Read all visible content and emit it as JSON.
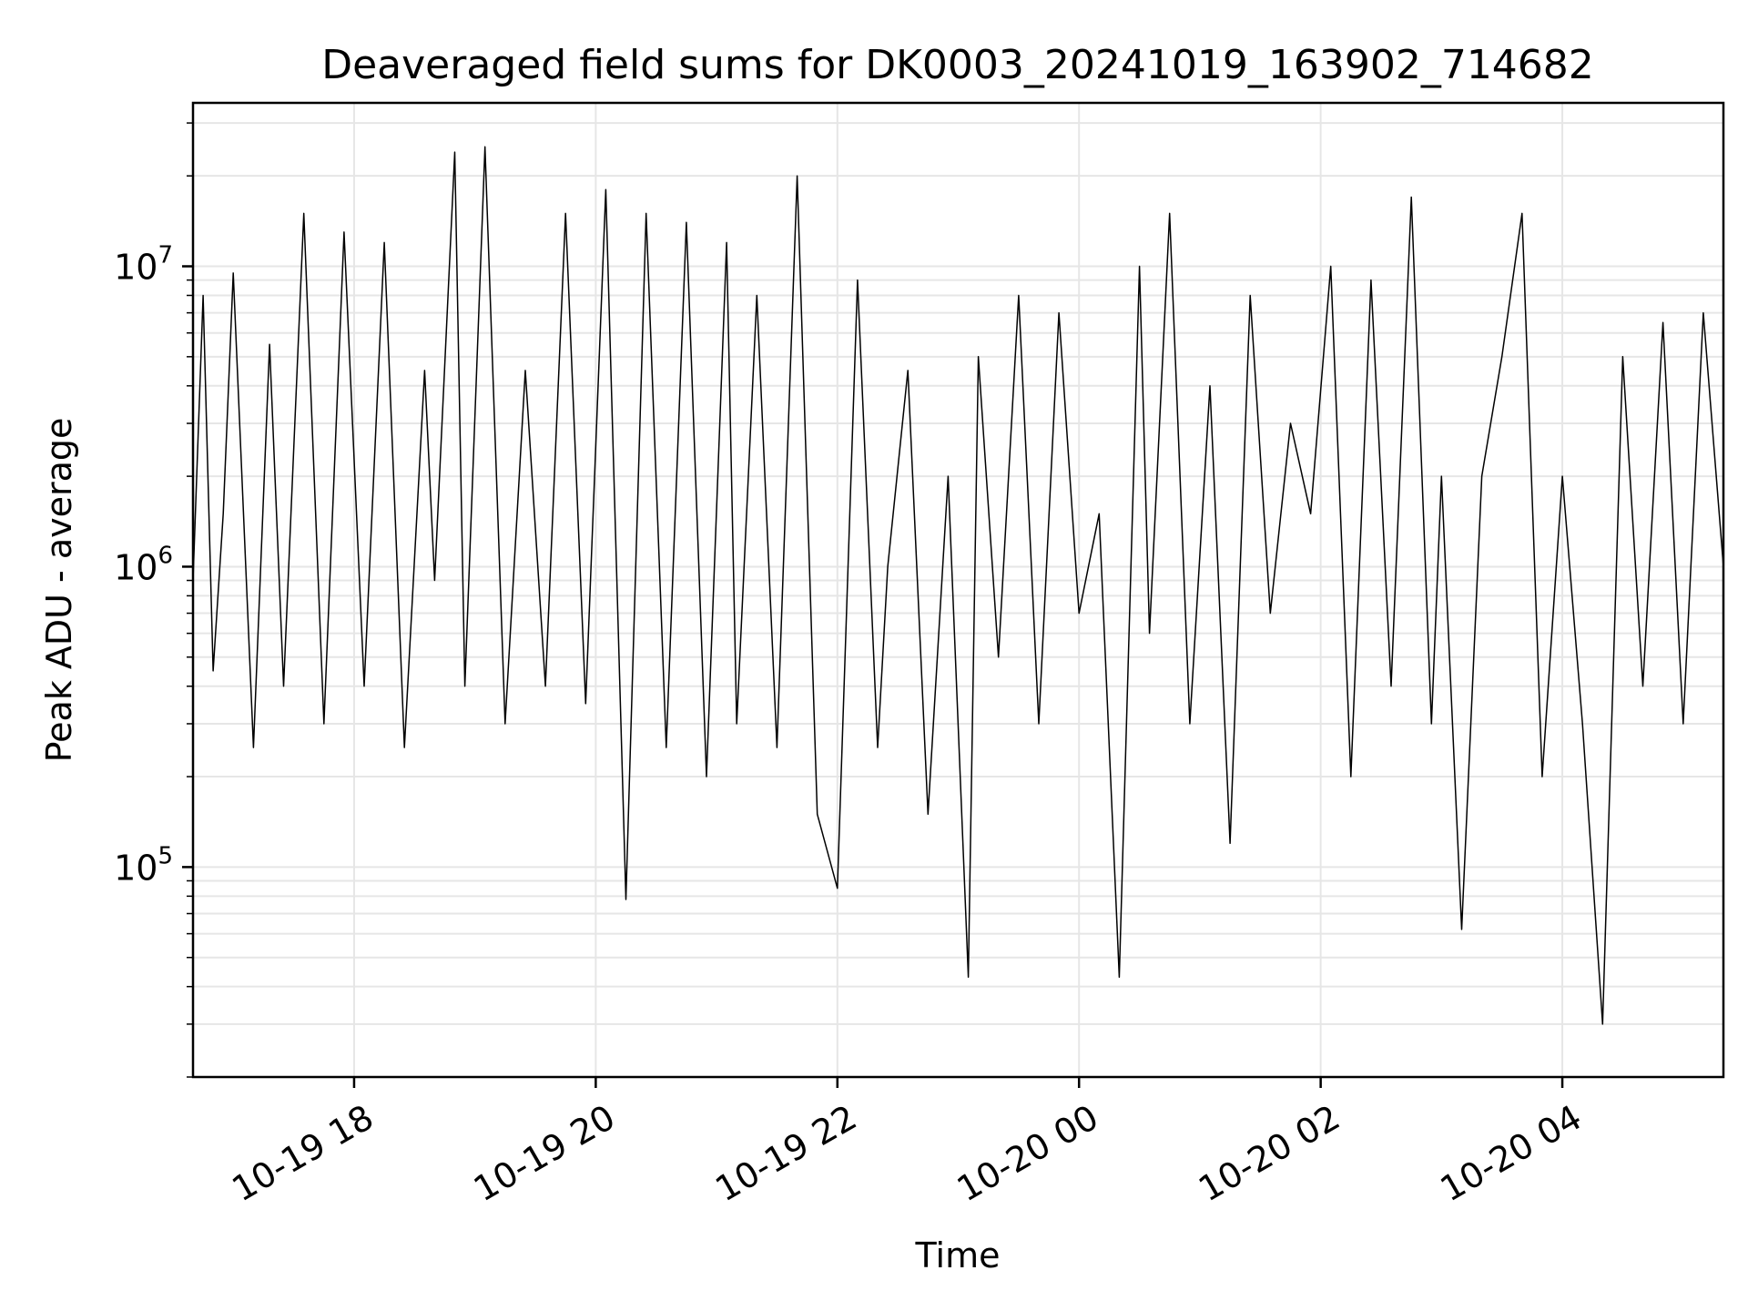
{
  "chart_data": {
    "type": "line",
    "title": "Deaveraged field sums for DK0003_20241019_163902_714682",
    "xlabel": "Time",
    "ylabel": "Peak ADU - average",
    "x_range": [
      "2024-10-19 16:40",
      "2024-10-20 05:20"
    ],
    "y_scale": "log",
    "ylim": [
      20000,
      35000000
    ],
    "x_ticks": [
      {
        "time": "2024-10-19 18:00",
        "label": "10-19 18"
      },
      {
        "time": "2024-10-19 20:00",
        "label": "10-19 20"
      },
      {
        "time": "2024-10-19 22:00",
        "label": "10-19 22"
      },
      {
        "time": "2024-10-20 00:00",
        "label": "10-20 00"
      },
      {
        "time": "2024-10-20 02:00",
        "label": "10-20 02"
      },
      {
        "time": "2024-10-20 04:00",
        "label": "10-20 04"
      }
    ],
    "y_ticks": [
      {
        "value": 100000,
        "base": "10",
        "exp": "5"
      },
      {
        "value": 1000000,
        "base": "10",
        "exp": "6"
      },
      {
        "value": 10000000,
        "base": "10",
        "exp": "7"
      }
    ],
    "grid": true,
    "legend": "none",
    "series": [
      {
        "color": "#000000",
        "x": [
          "2024-10-19 16:40",
          "2024-10-19 16:45",
          "2024-10-19 16:50",
          "2024-10-19 16:55",
          "2024-10-19 17:00",
          "2024-10-19 17:10",
          "2024-10-19 17:18",
          "2024-10-19 17:25",
          "2024-10-19 17:35",
          "2024-10-19 17:45",
          "2024-10-19 17:55",
          "2024-10-19 18:05",
          "2024-10-19 18:15",
          "2024-10-19 18:25",
          "2024-10-19 18:35",
          "2024-10-19 18:40",
          "2024-10-19 18:50",
          "2024-10-19 18:55",
          "2024-10-19 19:05",
          "2024-10-19 19:15",
          "2024-10-19 19:25",
          "2024-10-19 19:35",
          "2024-10-19 19:45",
          "2024-10-19 19:55",
          "2024-10-19 20:05",
          "2024-10-19 20:15",
          "2024-10-19 20:25",
          "2024-10-19 20:35",
          "2024-10-19 20:45",
          "2024-10-19 20:55",
          "2024-10-19 21:05",
          "2024-10-19 21:10",
          "2024-10-19 21:20",
          "2024-10-19 21:30",
          "2024-10-19 21:40",
          "2024-10-19 21:50",
          "2024-10-19 22:00",
          "2024-10-19 22:10",
          "2024-10-19 22:20",
          "2024-10-19 22:25",
          "2024-10-19 22:35",
          "2024-10-19 22:45",
          "2024-10-19 22:55",
          "2024-10-19 23:05",
          "2024-10-19 23:10",
          "2024-10-19 23:20",
          "2024-10-19 23:30",
          "2024-10-19 23:40",
          "2024-10-19 23:50",
          "2024-10-20 00:00",
          "2024-10-20 00:10",
          "2024-10-20 00:20",
          "2024-10-20 00:30",
          "2024-10-20 00:35",
          "2024-10-20 00:45",
          "2024-10-20 00:55",
          "2024-10-20 01:05",
          "2024-10-20 01:15",
          "2024-10-20 01:25",
          "2024-10-20 01:35",
          "2024-10-20 01:45",
          "2024-10-20 01:55",
          "2024-10-20 02:05",
          "2024-10-20 02:15",
          "2024-10-20 02:25",
          "2024-10-20 02:35",
          "2024-10-20 02:45",
          "2024-10-20 02:55",
          "2024-10-20 03:00",
          "2024-10-20 03:10",
          "2024-10-20 03:20",
          "2024-10-20 03:30",
          "2024-10-20 03:40",
          "2024-10-20 03:50",
          "2024-10-20 04:00",
          "2024-10-20 04:10",
          "2024-10-20 04:20",
          "2024-10-20 04:30",
          "2024-10-20 04:40",
          "2024-10-20 04:50",
          "2024-10-20 05:00",
          "2024-10-20 05:10",
          "2024-10-20 05:20"
        ],
        "values": [
          900000,
          8000000,
          450000,
          1500000,
          9500000,
          250000,
          5500000,
          400000,
          15000000,
          300000,
          13000000,
          400000,
          12000000,
          250000,
          4500000,
          900000,
          24000000,
          400000,
          25000000,
          300000,
          4500000,
          400000,
          15000000,
          350000,
          18000000,
          78000,
          15000000,
          250000,
          14000000,
          200000,
          12000000,
          300000,
          8000000,
          250000,
          20000000,
          150000,
          85000,
          9000000,
          250000,
          1000000,
          4500000,
          150000,
          2000000,
          43000,
          5000000,
          500000,
          8000000,
          300000,
          7000000,
          700000,
          1500000,
          43000,
          10000000,
          600000,
          15000000,
          300000,
          4000000,
          120000,
          8000000,
          700000,
          3000000,
          1500000,
          10000000,
          200000,
          9000000,
          400000,
          17000000,
          300000,
          2000000,
          62000,
          2000000,
          5000000,
          15000000,
          200000,
          2000000,
          300000,
          30000,
          5000000,
          400000,
          6500000,
          300000,
          7000000,
          1000000
        ]
      }
    ]
  }
}
